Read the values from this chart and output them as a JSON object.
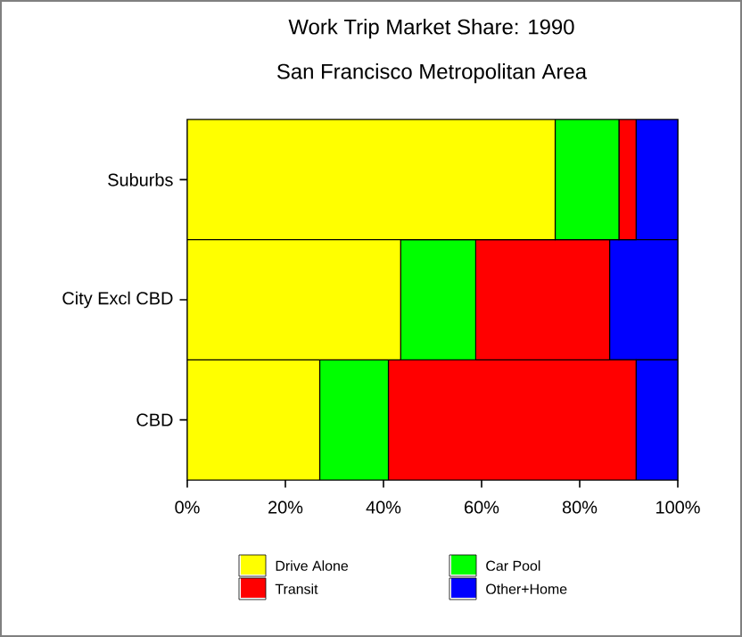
{
  "chart_data": {
    "type": "bar",
    "orientation": "horizontal",
    "stacked": true,
    "title": "Work Trip Market Share: 1990",
    "subtitle": "San Francisco Metropolitan Area",
    "categories": [
      "Suburbs",
      "City Excl CBD",
      "CBD"
    ],
    "series": [
      {
        "name": "Drive Alone",
        "color": "#ffff00",
        "values": [
          75,
          43.5,
          27
        ]
      },
      {
        "name": "Car Pool",
        "color": "#00ff00",
        "values": [
          13,
          15.3,
          14
        ]
      },
      {
        "name": "Transit",
        "color": "#ff0000",
        "values": [
          3.5,
          27.3,
          50.5
        ]
      },
      {
        "name": "Other+Home",
        "color": "#0000ff",
        "values": [
          8.5,
          13.9,
          8.5
        ]
      }
    ],
    "xlim": [
      0,
      100
    ],
    "xticks": [
      {
        "value": 0,
        "label": "0%"
      },
      {
        "value": 20,
        "label": "20%"
      },
      {
        "value": 40,
        "label": "40%"
      },
      {
        "value": 60,
        "label": "60%"
      },
      {
        "value": 80,
        "label": "80%"
      },
      {
        "value": 100,
        "label": "100%"
      }
    ],
    "legend": "bottom"
  }
}
